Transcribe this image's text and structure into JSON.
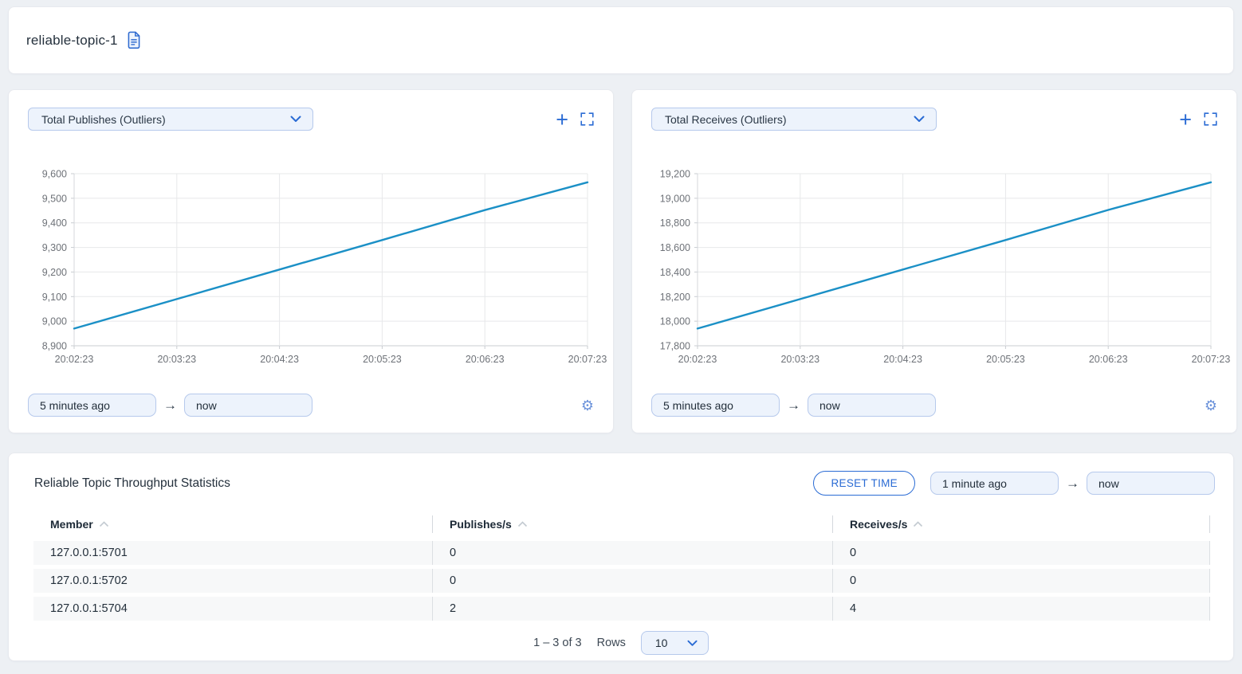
{
  "theme": {
    "accent": "#2a6bd4",
    "page_bg": "#edf0f4",
    "input_bg": "#edf3fc",
    "input_border": "#b6c9ec",
    "line_color": "#1b90c6"
  },
  "icons": {
    "plus": "+",
    "arrow_right": "→",
    "gear": "⚙"
  },
  "header": {
    "title": "reliable-topic-1"
  },
  "panels": [
    {
      "metric_label": "Total Publishes (Outliers)",
      "time_from": "5 minutes ago",
      "time_to": "now"
    },
    {
      "metric_label": "Total Receives (Outliers)",
      "time_from": "5 minutes ago",
      "time_to": "now"
    }
  ],
  "chart_data": [
    {
      "type": "line",
      "title": "Total Publishes (Outliers)",
      "x": [
        "20:02:23",
        "20:03:23",
        "20:04:23",
        "20:05:23",
        "20:06:23",
        "20:07:23"
      ],
      "values": [
        8970,
        9090,
        9210,
        9330,
        9452,
        9565
      ],
      "ylim": [
        8900,
        9600
      ],
      "ytick_step": 100,
      "xlabel": "",
      "ylabel": "",
      "grid": true,
      "legend": "none",
      "line_color": "#1b90c6"
    },
    {
      "type": "line",
      "title": "Total Receives (Outliers)",
      "x": [
        "20:02:23",
        "20:03:23",
        "20:04:23",
        "20:05:23",
        "20:06:23",
        "20:07:23"
      ],
      "values": [
        17940,
        18180,
        18420,
        18660,
        18905,
        19130
      ],
      "ylim": [
        17800,
        19200
      ],
      "ytick_step": 200,
      "xlabel": "",
      "ylabel": "",
      "grid": true,
      "legend": "none",
      "line_color": "#1b90c6"
    }
  ],
  "stats": {
    "heading": "Reliable Topic Throughput Statistics",
    "reset_button_label": "RESET TIME",
    "time_from": "1 minute ago",
    "time_to": "now",
    "columns": [
      "Member",
      "Publishes/s",
      "Receives/s"
    ],
    "rows": [
      [
        "127.0.0.1:5701",
        "0",
        "0"
      ],
      [
        "127.0.0.1:5702",
        "0",
        "0"
      ],
      [
        "127.0.0.1:5704",
        "2",
        "4"
      ]
    ],
    "pagination": {
      "range": "1 – 3 of 3",
      "rows_label": "Rows",
      "rows_per_page": "10"
    }
  }
}
